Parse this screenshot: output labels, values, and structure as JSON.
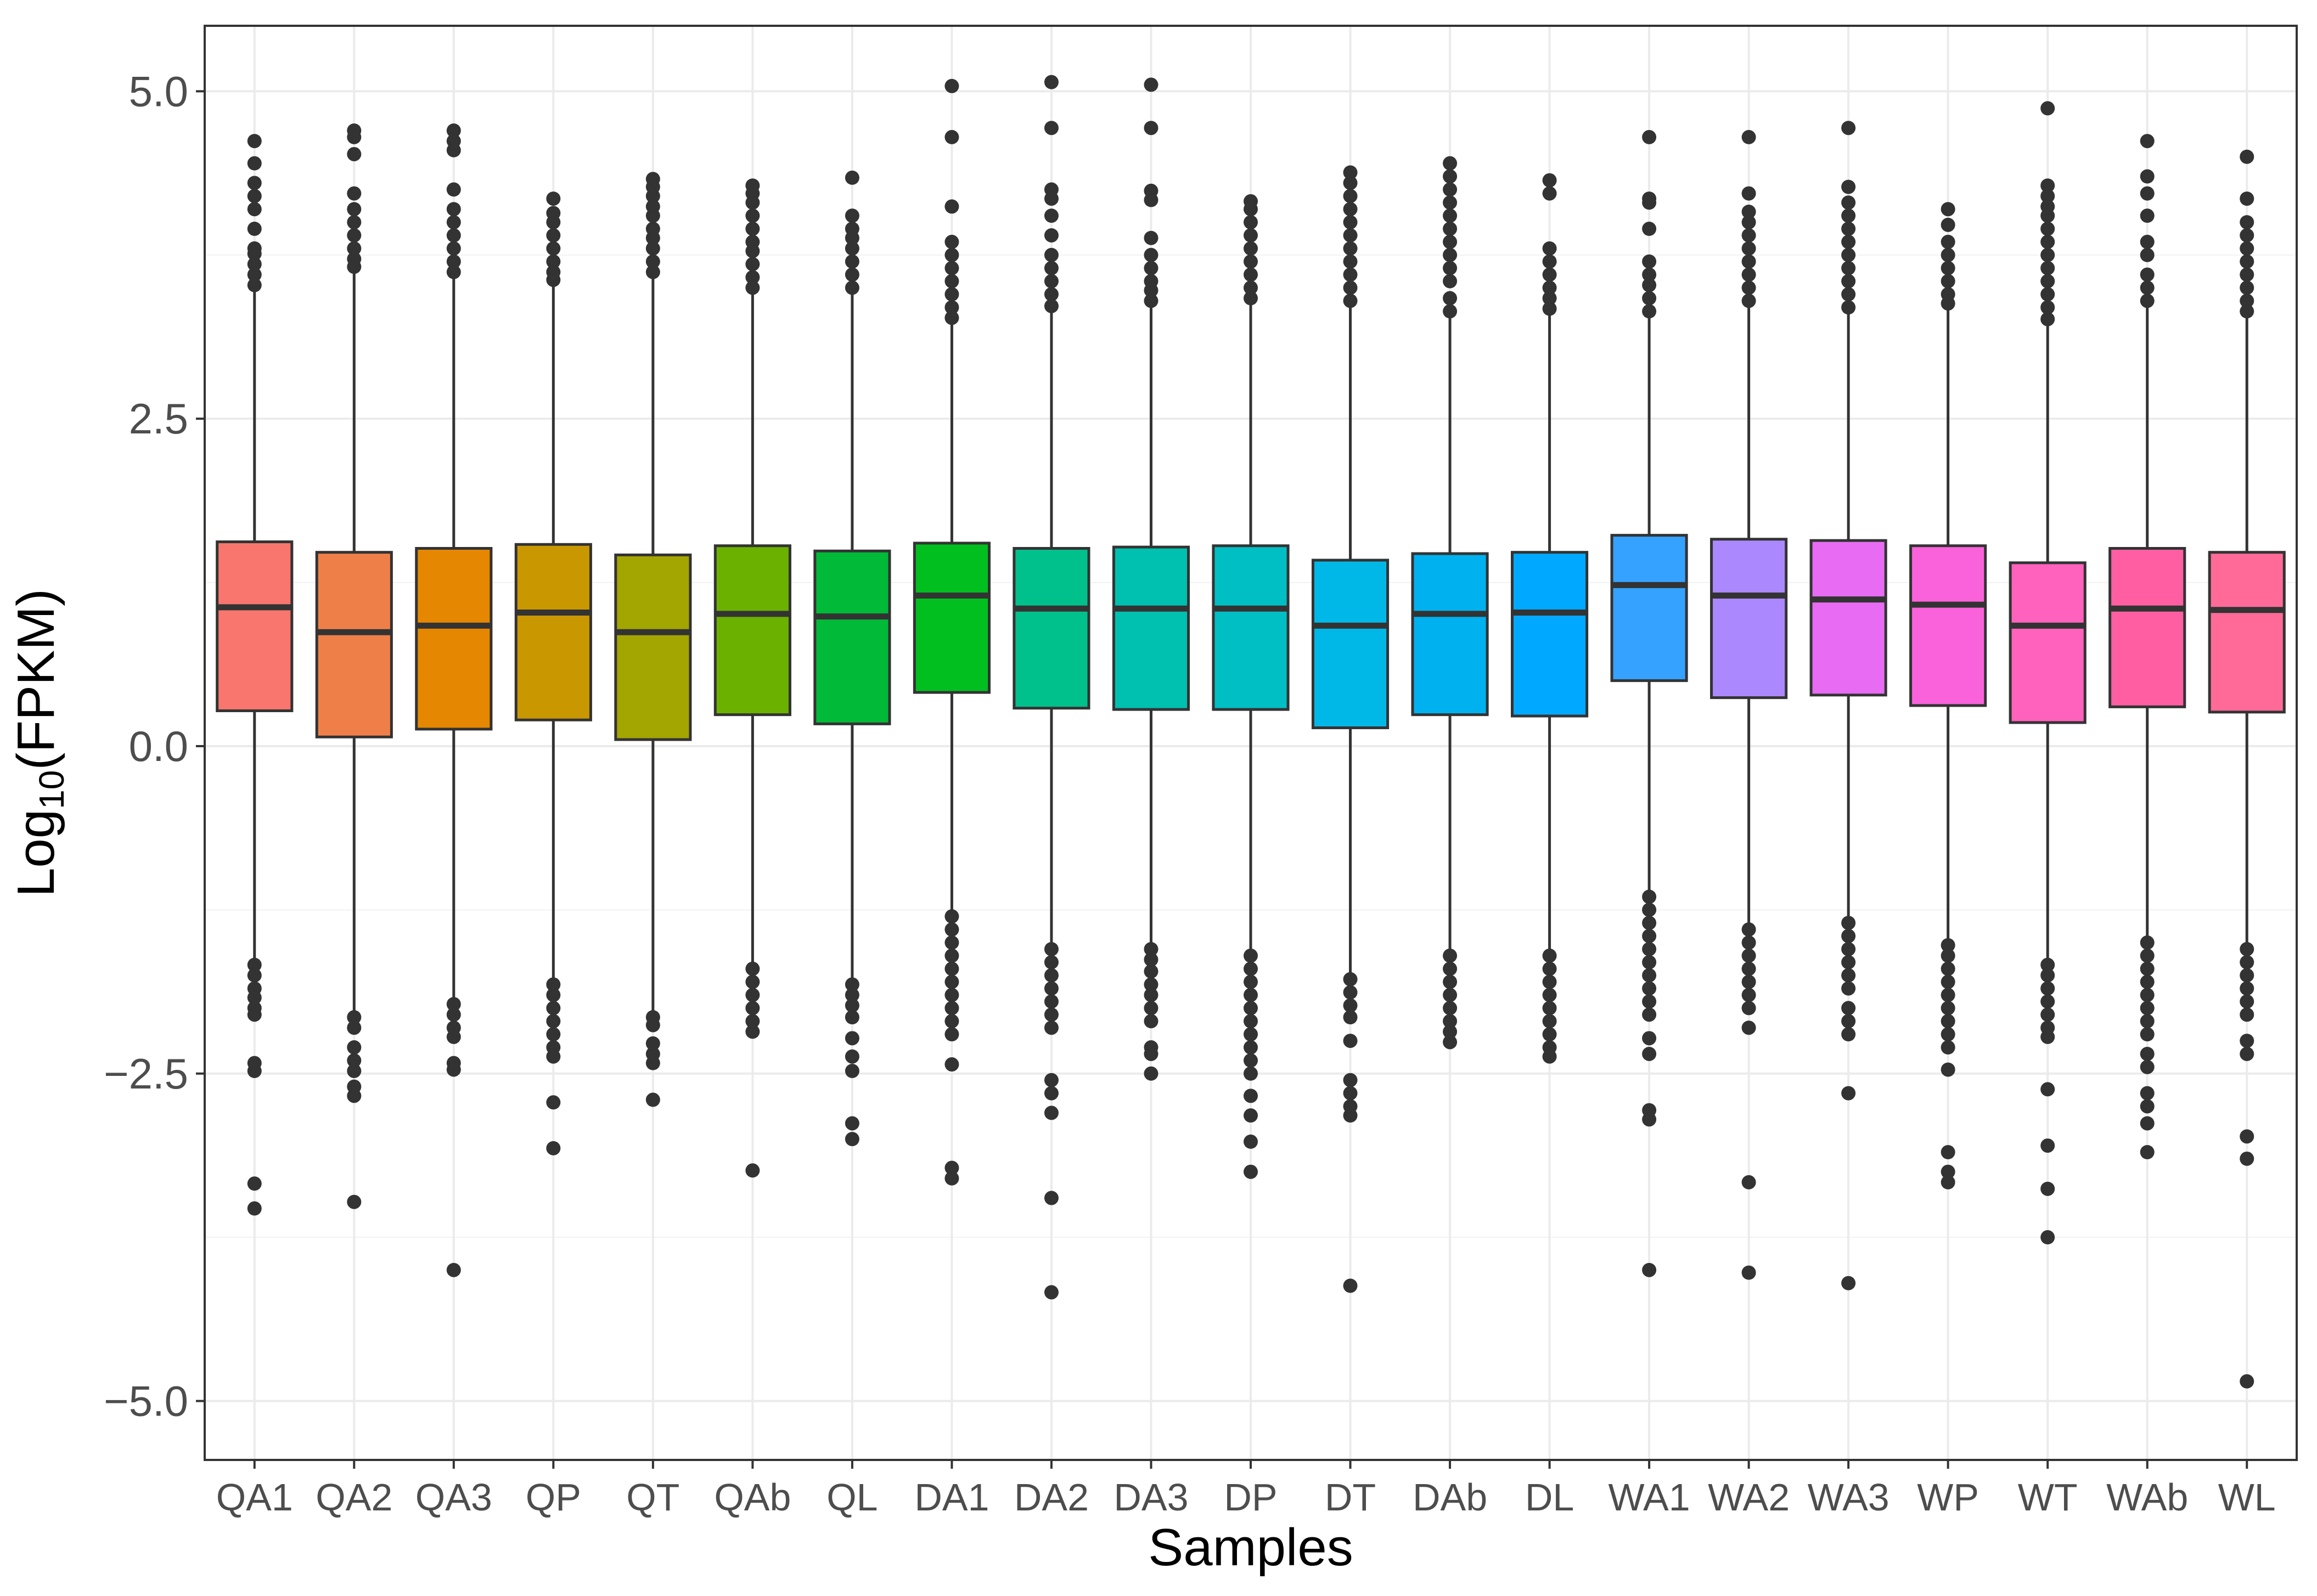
{
  "chart_data": {
    "type": "box",
    "title": "",
    "xlabel": "Samples",
    "ylabel": {
      "main": "Log",
      "subscript": "10",
      "suffix": "(FPKM)"
    },
    "ylim": [
      -5.45,
      5.5
    ],
    "yticks": [
      -5.0,
      -2.5,
      0.0,
      2.5,
      5.0
    ],
    "ytick_labels": [
      "−5.0",
      "−2.5",
      "0.0",
      "2.5",
      "5.0"
    ],
    "grid": true,
    "legend": "none",
    "series": [
      {
        "name": "QA1",
        "color": "#F8766D",
        "q1": 0.27,
        "median": 1.06,
        "q3": 1.56,
        "whisker_low": -1.62,
        "whisker_high": 3.48,
        "outliers_high": [
          3.52,
          3.6,
          3.68,
          3.76,
          3.8,
          3.95,
          4.1,
          4.2,
          4.3,
          4.45,
          4.62
        ],
        "outliers_low": [
          -1.67,
          -1.75,
          -1.85,
          -1.92,
          -2.0,
          -2.05,
          -2.42,
          -2.48,
          -3.34,
          -3.53
        ]
      },
      {
        "name": "QA2",
        "color": "#EF7F49",
        "q1": 0.07,
        "median": 0.87,
        "q3": 1.48,
        "whisker_low": -2.02,
        "whisker_high": 3.62,
        "outliers_high": [
          3.66,
          3.72,
          3.8,
          3.9,
          4.0,
          4.1,
          4.22,
          4.52,
          4.65,
          4.7
        ],
        "outliers_low": [
          -2.07,
          -2.15,
          -2.3,
          -2.4,
          -2.48,
          -2.6,
          -2.67,
          -3.48
        ]
      },
      {
        "name": "QA3",
        "color": "#E58700",
        "q1": 0.13,
        "median": 0.92,
        "q3": 1.51,
        "whisker_low": -1.93,
        "whisker_high": 3.58,
        "outliers_high": [
          3.62,
          3.7,
          3.8,
          3.9,
          4.0,
          4.1,
          4.25,
          4.55,
          4.62,
          4.7
        ],
        "outliers_low": [
          -1.97,
          -2.05,
          -2.15,
          -2.22,
          -2.42,
          -2.47,
          -4.0
        ]
      },
      {
        "name": "QP",
        "color": "#C99800",
        "q1": 0.2,
        "median": 1.02,
        "q3": 1.54,
        "whisker_low": -1.78,
        "whisker_high": 3.52,
        "outliers_high": [
          3.56,
          3.62,
          3.7,
          3.8,
          3.9,
          4.0,
          4.07,
          4.18
        ],
        "outliers_low": [
          -1.82,
          -1.9,
          -2.0,
          -2.1,
          -2.2,
          -2.3,
          -2.37,
          -2.72,
          -3.07
        ]
      },
      {
        "name": "QT",
        "color": "#A3A500",
        "q1": 0.05,
        "median": 0.87,
        "q3": 1.46,
        "whisker_low": -2.02,
        "whisker_high": 3.58,
        "outliers_high": [
          3.62,
          3.7,
          3.8,
          3.88,
          3.95,
          4.05,
          4.12,
          4.2,
          4.27,
          4.33
        ],
        "outliers_low": [
          -2.07,
          -2.13,
          -2.27,
          -2.35,
          -2.42,
          -2.7
        ]
      },
      {
        "name": "QAb",
        "color": "#6BB100",
        "q1": 0.24,
        "median": 1.01,
        "q3": 1.53,
        "whisker_low": -1.65,
        "whisker_high": 3.45,
        "outliers_high": [
          3.5,
          3.58,
          3.68,
          3.78,
          3.85,
          3.95,
          4.05,
          4.15,
          4.22,
          4.28
        ],
        "outliers_low": [
          -1.7,
          -1.8,
          -1.9,
          -2.0,
          -2.1,
          -2.18,
          -3.24
        ]
      },
      {
        "name": "QL",
        "color": "#00BA38",
        "q1": 0.17,
        "median": 0.99,
        "q3": 1.49,
        "whisker_low": -1.77,
        "whisker_high": 3.46,
        "outliers_high": [
          3.5,
          3.6,
          3.7,
          3.8,
          3.88,
          3.95,
          4.05,
          4.34
        ],
        "outliers_low": [
          -1.82,
          -1.9,
          -1.98,
          -2.07,
          -2.23,
          -2.37,
          -2.48,
          -2.88,
          -3.0
        ]
      },
      {
        "name": "DA1",
        "color": "#00BF1F",
        "q1": 0.41,
        "median": 1.15,
        "q3": 1.55,
        "whisker_low": -1.26,
        "whisker_high": 3.22,
        "outliers_high": [
          3.27,
          3.35,
          3.45,
          3.55,
          3.65,
          3.75,
          3.85,
          4.12,
          4.65,
          5.04
        ],
        "outliers_low": [
          -1.3,
          -1.4,
          -1.5,
          -1.6,
          -1.7,
          -1.8,
          -1.9,
          -2.0,
          -2.1,
          -2.2,
          -2.43,
          -3.22,
          -3.3
        ]
      },
      {
        "name": "DA2",
        "color": "#00C08B",
        "q1": 0.29,
        "median": 1.05,
        "q3": 1.51,
        "whisker_low": -1.5,
        "whisker_high": 3.32,
        "outliers_high": [
          3.36,
          3.45,
          3.55,
          3.65,
          3.75,
          3.9,
          4.05,
          4.18,
          4.25,
          4.72,
          5.07
        ],
        "outliers_low": [
          -1.55,
          -1.65,
          -1.75,
          -1.85,
          -1.95,
          -2.05,
          -2.15,
          -2.55,
          -2.65,
          -2.8,
          -3.45,
          -4.17
        ]
      },
      {
        "name": "DA3",
        "color": "#00C0AF",
        "q1": 0.28,
        "median": 1.05,
        "q3": 1.52,
        "whisker_low": -1.5,
        "whisker_high": 3.35,
        "outliers_high": [
          3.4,
          3.48,
          3.55,
          3.65,
          3.75,
          3.88,
          4.17,
          4.24,
          4.72,
          5.05
        ],
        "outliers_low": [
          -1.55,
          -1.63,
          -1.72,
          -1.82,
          -1.9,
          -2.0,
          -2.1,
          -2.3,
          -2.35,
          -2.5
        ]
      },
      {
        "name": "DP",
        "color": "#00BFC4",
        "q1": 0.28,
        "median": 1.05,
        "q3": 1.53,
        "whisker_low": -1.55,
        "whisker_high": 3.37,
        "outliers_high": [
          3.42,
          3.5,
          3.6,
          3.7,
          3.8,
          3.9,
          4.0,
          4.1,
          4.16
        ],
        "outliers_low": [
          -1.6,
          -1.7,
          -1.8,
          -1.9,
          -2.0,
          -2.1,
          -2.2,
          -2.3,
          -2.4,
          -2.5,
          -2.67,
          -2.82,
          -3.02,
          -3.25
        ]
      },
      {
        "name": "DT",
        "color": "#00B8E7",
        "q1": 0.14,
        "median": 0.92,
        "q3": 1.42,
        "whisker_low": -1.73,
        "whisker_high": 3.35,
        "outliers_high": [
          3.4,
          3.5,
          3.6,
          3.7,
          3.8,
          3.9,
          4.0,
          4.1,
          4.2,
          4.3,
          4.38
        ],
        "outliers_low": [
          -1.78,
          -1.88,
          -1.98,
          -2.07,
          -2.25,
          -2.55,
          -2.65,
          -2.75,
          -2.82,
          -4.12
        ]
      },
      {
        "name": "DAb",
        "color": "#00B1F0",
        "q1": 0.24,
        "median": 1.01,
        "q3": 1.47,
        "whisker_low": -1.55,
        "whisker_high": 3.28,
        "outliers_high": [
          3.32,
          3.42,
          3.55,
          3.65,
          3.75,
          3.85,
          3.95,
          4.05,
          4.15,
          4.25,
          4.35,
          4.45
        ],
        "outliers_low": [
          -1.6,
          -1.7,
          -1.8,
          -1.9,
          -2.0,
          -2.1,
          -2.18,
          -2.26
        ]
      },
      {
        "name": "DL",
        "color": "#00A9FF",
        "q1": 0.23,
        "median": 1.02,
        "q3": 1.48,
        "whisker_low": -1.55,
        "whisker_high": 3.3,
        "outliers_high": [
          3.34,
          3.42,
          3.5,
          3.6,
          3.7,
          3.8,
          4.22,
          4.32
        ],
        "outliers_low": [
          -1.6,
          -1.7,
          -1.8,
          -1.9,
          -2.0,
          -2.1,
          -2.2,
          -2.3,
          -2.37
        ]
      },
      {
        "name": "WA1",
        "color": "#35A2FF",
        "q1": 0.5,
        "median": 1.23,
        "q3": 1.61,
        "whisker_low": -1.1,
        "whisker_high": 3.28,
        "outliers_high": [
          3.32,
          3.42,
          3.52,
          3.6,
          3.7,
          3.95,
          4.15,
          4.18,
          4.65
        ],
        "outliers_low": [
          -1.15,
          -1.25,
          -1.35,
          -1.45,
          -1.55,
          -1.65,
          -1.75,
          -1.85,
          -1.95,
          -2.05,
          -2.23,
          -2.35,
          -2.78,
          -2.85,
          -4.0
        ]
      },
      {
        "name": "WA2",
        "color": "#AC88FF",
        "q1": 0.37,
        "median": 1.15,
        "q3": 1.58,
        "whisker_low": -1.35,
        "whisker_high": 3.35,
        "outliers_high": [
          3.4,
          3.5,
          3.6,
          3.7,
          3.8,
          3.9,
          4.0,
          4.08,
          4.22,
          4.65
        ],
        "outliers_low": [
          -1.4,
          -1.5,
          -1.6,
          -1.7,
          -1.8,
          -1.9,
          -2.0,
          -2.15,
          -3.33,
          -4.02
        ]
      },
      {
        "name": "WA3",
        "color": "#E76BF3",
        "q1": 0.39,
        "median": 1.12,
        "q3": 1.57,
        "whisker_low": -1.3,
        "whisker_high": 3.3,
        "outliers_high": [
          3.35,
          3.45,
          3.55,
          3.65,
          3.75,
          3.85,
          3.95,
          4.05,
          4.15,
          4.27,
          4.72
        ],
        "outliers_low": [
          -1.35,
          -1.45,
          -1.55,
          -1.65,
          -1.75,
          -1.85,
          -2.0,
          -2.1,
          -2.2,
          -2.65,
          -4.1
        ]
      },
      {
        "name": "WP",
        "color": "#FA62DB",
        "q1": 0.31,
        "median": 1.08,
        "q3": 1.53,
        "whisker_low": -1.48,
        "whisker_high": 3.33,
        "outliers_high": [
          3.38,
          3.45,
          3.55,
          3.65,
          3.75,
          3.85,
          3.98,
          4.1
        ],
        "outliers_low": [
          -1.52,
          -1.6,
          -1.7,
          -1.8,
          -1.9,
          -2.0,
          -2.1,
          -2.2,
          -2.3,
          -2.47,
          -3.1,
          -3.25,
          -3.33
        ]
      },
      {
        "name": "WT",
        "color": "#FF62BC",
        "q1": 0.18,
        "median": 0.92,
        "q3": 1.4,
        "whisker_low": -1.62,
        "whisker_high": 3.22,
        "outliers_high": [
          3.26,
          3.35,
          3.45,
          3.55,
          3.65,
          3.75,
          3.85,
          3.95,
          4.05,
          4.12,
          4.2,
          4.28,
          4.87
        ],
        "outliers_low": [
          -1.67,
          -1.75,
          -1.85,
          -1.95,
          -2.05,
          -2.15,
          -2.22,
          -2.62,
          -3.05,
          -3.38,
          -3.75
        ]
      },
      {
        "name": "WAb",
        "color": "#FF5FA2",
        "q1": 0.3,
        "median": 1.05,
        "q3": 1.51,
        "whisker_low": -1.45,
        "whisker_high": 3.35,
        "outliers_high": [
          3.4,
          3.5,
          3.6,
          3.75,
          3.85,
          4.05,
          4.22,
          4.35,
          4.62
        ],
        "outliers_low": [
          -1.5,
          -1.6,
          -1.7,
          -1.8,
          -1.9,
          -2.0,
          -2.1,
          -2.2,
          -2.35,
          -2.45,
          -2.65,
          -2.75,
          -2.88,
          -3.1
        ]
      },
      {
        "name": "WL",
        "color": "#FF6A98",
        "q1": 0.26,
        "median": 1.04,
        "q3": 1.48,
        "whisker_low": -1.5,
        "whisker_high": 3.28,
        "outliers_high": [
          3.32,
          3.4,
          3.5,
          3.6,
          3.7,
          3.8,
          3.9,
          4.0,
          4.18,
          4.5
        ],
        "outliers_low": [
          -1.55,
          -1.65,
          -1.75,
          -1.85,
          -1.95,
          -2.05,
          -2.25,
          -2.35,
          -2.98,
          -3.15,
          -4.85
        ]
      }
    ]
  }
}
